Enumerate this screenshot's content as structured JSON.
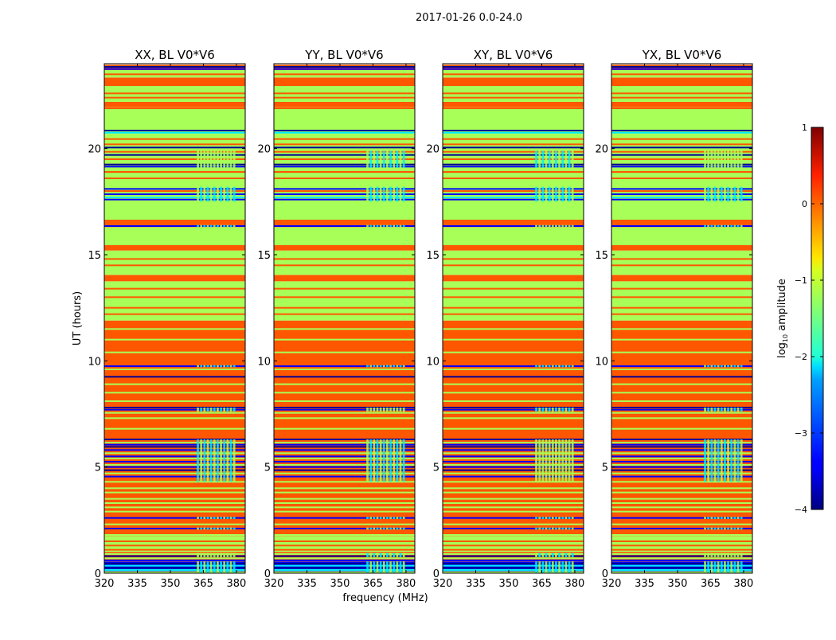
{
  "chart_data": {
    "type": "heatmap",
    "title": "2017-01-26 0.0-24.0",
    "xlabel": "frequency (MHz)",
    "ylabel": "UT (hours)",
    "xlim": [
      320,
      384
    ],
    "ylim": [
      0,
      24
    ],
    "xticks": [
      320,
      335,
      350,
      365,
      380
    ],
    "yticks": [
      0,
      5,
      10,
      15,
      20
    ],
    "panels": [
      {
        "title": "XX, BL V0*V6"
      },
      {
        "title": "YY, BL V0*V6"
      },
      {
        "title": "XY, BL V0*V6"
      },
      {
        "title": "YX, BL V0*V6"
      }
    ],
    "colorbar": {
      "label_prefix": "log",
      "label_sub": "10",
      "label_suffix": " amplitude",
      "colormap": "jet",
      "range": [
        -4,
        1
      ],
      "ticks": [
        1,
        0,
        -1,
        -2,
        -3,
        -4
      ],
      "tick_labels": [
        "1",
        "0",
        "−1",
        "−2",
        "−3",
        "−4"
      ]
    },
    "value_codes": {
      "O": -0.05,
      "G": -1.3,
      "Y": -0.8,
      "C": -2.2,
      "B": -3.4,
      "K": -3.9
    },
    "base_bands": [
      [
        0,
        0.55,
        "B"
      ],
      [
        0.55,
        1.0,
        "O"
      ],
      [
        1.0,
        1.75,
        "G"
      ],
      [
        1.75,
        11.9,
        "O"
      ],
      [
        11.9,
        13.75,
        "G"
      ],
      [
        13.75,
        14.05,
        "O"
      ],
      [
        14.05,
        15.2,
        "G"
      ],
      [
        15.2,
        15.45,
        "O"
      ],
      [
        15.45,
        16.3,
        "G"
      ],
      [
        16.3,
        16.65,
        "O"
      ],
      [
        16.65,
        21.95,
        "G"
      ],
      [
        21.95,
        22.2,
        "O"
      ],
      [
        22.2,
        22.95,
        "G"
      ],
      [
        22.95,
        23.35,
        "O"
      ],
      [
        23.35,
        23.7,
        "G"
      ],
      [
        23.7,
        23.95,
        "O"
      ]
    ],
    "line_bands": [
      [
        0.05,
        "G"
      ],
      [
        0.15,
        "C"
      ],
      [
        0.25,
        "K"
      ],
      [
        0.35,
        "C"
      ],
      [
        0.45,
        "K"
      ],
      [
        0.6,
        "B"
      ],
      [
        0.7,
        "G"
      ],
      [
        0.8,
        "K"
      ],
      [
        0.9,
        "G"
      ],
      [
        1.1,
        "O"
      ],
      [
        1.3,
        "O"
      ],
      [
        1.5,
        "O"
      ],
      [
        1.8,
        "G"
      ],
      [
        2.1,
        "B"
      ],
      [
        2.3,
        "G"
      ],
      [
        2.6,
        "B"
      ],
      [
        2.9,
        "G"
      ],
      [
        3.1,
        "G"
      ],
      [
        3.3,
        "G"
      ],
      [
        3.5,
        "G"
      ],
      [
        3.8,
        "G"
      ],
      [
        4.0,
        "G"
      ],
      [
        4.3,
        "G"
      ],
      [
        4.55,
        "B"
      ],
      [
        4.7,
        "G"
      ],
      [
        4.85,
        "K"
      ],
      [
        5.0,
        "B"
      ],
      [
        5.1,
        "G"
      ],
      [
        5.25,
        "B"
      ],
      [
        5.4,
        "G"
      ],
      [
        5.5,
        "B"
      ],
      [
        5.65,
        "G"
      ],
      [
        5.8,
        "B"
      ],
      [
        5.95,
        "K"
      ],
      [
        6.05,
        "B"
      ],
      [
        6.15,
        "G"
      ],
      [
        6.3,
        "K"
      ],
      [
        6.8,
        "G"
      ],
      [
        7.3,
        "G"
      ],
      [
        7.55,
        "G"
      ],
      [
        7.7,
        "B"
      ],
      [
        7.8,
        "K"
      ],
      [
        8.1,
        "G"
      ],
      [
        8.5,
        "G"
      ],
      [
        8.9,
        "G"
      ],
      [
        9.25,
        "K"
      ],
      [
        9.6,
        "G"
      ],
      [
        9.75,
        "B"
      ],
      [
        10.4,
        "G"
      ],
      [
        11.0,
        "G"
      ],
      [
        11.5,
        "G"
      ],
      [
        12.2,
        "O"
      ],
      [
        12.5,
        "O"
      ],
      [
        13.0,
        "O"
      ],
      [
        13.4,
        "O"
      ],
      [
        14.5,
        "O"
      ],
      [
        14.8,
        "O"
      ],
      [
        16.35,
        "B"
      ],
      [
        17.6,
        "B"
      ],
      [
        17.7,
        "C"
      ],
      [
        17.85,
        "B"
      ],
      [
        18.0,
        "O"
      ],
      [
        18.1,
        "B"
      ],
      [
        18.6,
        "O"
      ],
      [
        18.9,
        "O"
      ],
      [
        19.15,
        "B"
      ],
      [
        19.25,
        "K"
      ],
      [
        19.5,
        "O"
      ],
      [
        19.7,
        "K"
      ],
      [
        19.85,
        "O"
      ],
      [
        20.05,
        "K"
      ],
      [
        20.2,
        "O"
      ],
      [
        20.45,
        "O"
      ],
      [
        20.75,
        "C"
      ],
      [
        20.85,
        "K"
      ],
      [
        21.9,
        "O"
      ],
      [
        22.4,
        "O"
      ],
      [
        22.6,
        "O"
      ],
      [
        23.5,
        "O"
      ],
      [
        23.75,
        "B"
      ],
      [
        23.85,
        "K"
      ]
    ],
    "rfi_freq_range": [
      362,
      379
    ],
    "rfi_bands": [
      [
        0,
        0.55
      ],
      [
        0.75,
        0.95
      ],
      [
        2.05,
        2.15
      ],
      [
        2.55,
        2.65
      ],
      [
        4.3,
        6.3
      ],
      [
        7.6,
        7.8
      ],
      [
        9.7,
        9.8
      ],
      [
        16.3,
        16.4
      ],
      [
        17.5,
        18.2
      ],
      [
        19.1,
        19.9
      ]
    ]
  }
}
